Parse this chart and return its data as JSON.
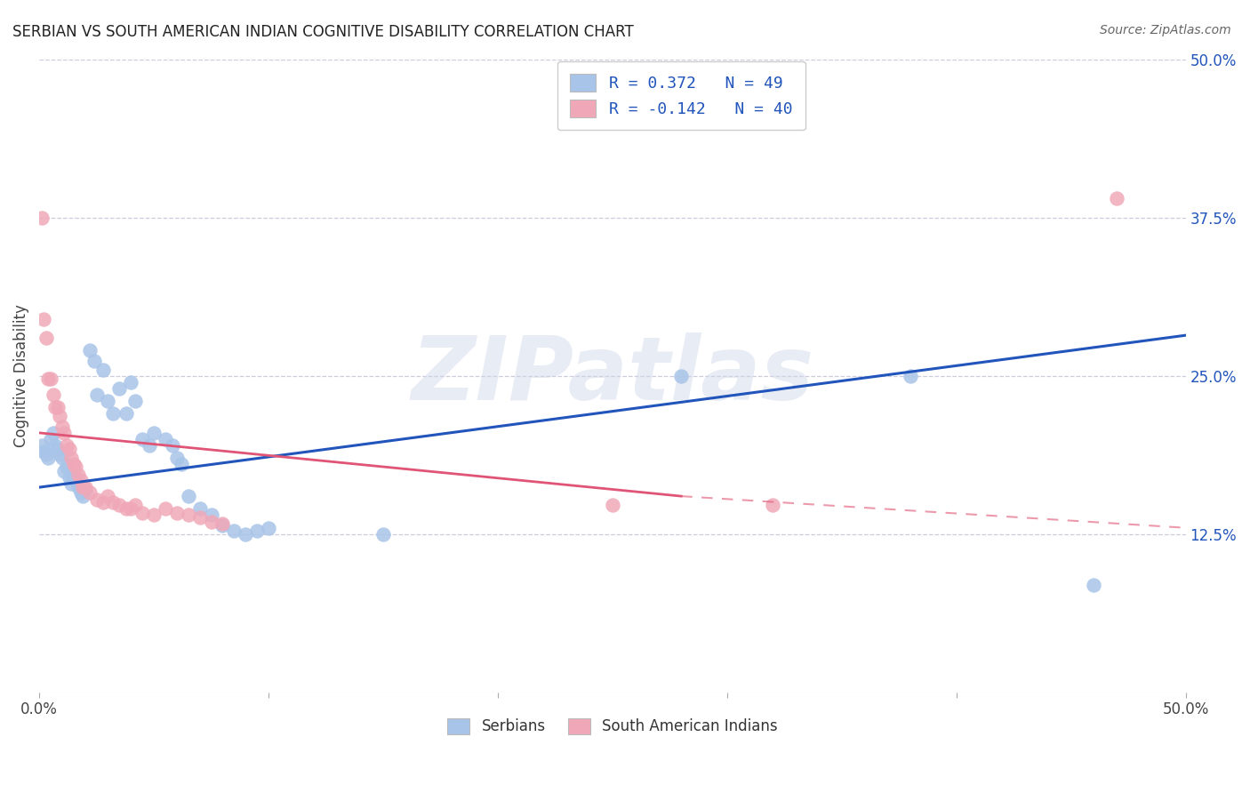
{
  "title": "SERBIAN VS SOUTH AMERICAN INDIAN COGNITIVE DISABILITY CORRELATION CHART",
  "source": "Source: ZipAtlas.com",
  "ylabel": "Cognitive Disability",
  "watermark": "ZIPatlas",
  "serbian_R": 0.372,
  "serbian_N": 49,
  "sai_R": -0.142,
  "sai_N": 40,
  "serbian_color": "#a8c4e8",
  "sai_color": "#f0a8b8",
  "serbian_line_color": "#2255bb",
  "sai_line_color": "#e05575",
  "xlim": [
    0.0,
    0.5
  ],
  "ylim": [
    0.0,
    0.5
  ],
  "serbian_points": [
    [
      0.001,
      0.195
    ],
    [
      0.002,
      0.19
    ],
    [
      0.003,
      0.188
    ],
    [
      0.004,
      0.185
    ],
    [
      0.005,
      0.2
    ],
    [
      0.006,
      0.205
    ],
    [
      0.007,
      0.195
    ],
    [
      0.008,
      0.192
    ],
    [
      0.009,
      0.188
    ],
    [
      0.01,
      0.185
    ],
    [
      0.011,
      0.175
    ],
    [
      0.012,
      0.178
    ],
    [
      0.013,
      0.17
    ],
    [
      0.014,
      0.165
    ],
    [
      0.015,
      0.17
    ],
    [
      0.016,
      0.168
    ],
    [
      0.017,
      0.162
    ],
    [
      0.018,
      0.158
    ],
    [
      0.019,
      0.155
    ],
    [
      0.02,
      0.16
    ],
    [
      0.022,
      0.27
    ],
    [
      0.024,
      0.262
    ],
    [
      0.025,
      0.235
    ],
    [
      0.028,
      0.255
    ],
    [
      0.03,
      0.23
    ],
    [
      0.032,
      0.22
    ],
    [
      0.035,
      0.24
    ],
    [
      0.038,
      0.22
    ],
    [
      0.04,
      0.245
    ],
    [
      0.042,
      0.23
    ],
    [
      0.045,
      0.2
    ],
    [
      0.048,
      0.195
    ],
    [
      0.05,
      0.205
    ],
    [
      0.055,
      0.2
    ],
    [
      0.058,
      0.195
    ],
    [
      0.06,
      0.185
    ],
    [
      0.062,
      0.18
    ],
    [
      0.065,
      0.155
    ],
    [
      0.07,
      0.145
    ],
    [
      0.075,
      0.14
    ],
    [
      0.08,
      0.132
    ],
    [
      0.085,
      0.128
    ],
    [
      0.09,
      0.125
    ],
    [
      0.095,
      0.128
    ],
    [
      0.1,
      0.13
    ],
    [
      0.15,
      0.125
    ],
    [
      0.28,
      0.25
    ],
    [
      0.38,
      0.25
    ],
    [
      0.46,
      0.085
    ]
  ],
  "sai_points": [
    [
      0.001,
      0.375
    ],
    [
      0.002,
      0.295
    ],
    [
      0.003,
      0.28
    ],
    [
      0.004,
      0.248
    ],
    [
      0.005,
      0.248
    ],
    [
      0.006,
      0.235
    ],
    [
      0.007,
      0.225
    ],
    [
      0.008,
      0.225
    ],
    [
      0.009,
      0.218
    ],
    [
      0.01,
      0.21
    ],
    [
      0.011,
      0.205
    ],
    [
      0.012,
      0.195
    ],
    [
      0.013,
      0.192
    ],
    [
      0.014,
      0.185
    ],
    [
      0.015,
      0.18
    ],
    [
      0.016,
      0.178
    ],
    [
      0.017,
      0.172
    ],
    [
      0.018,
      0.168
    ],
    [
      0.019,
      0.162
    ],
    [
      0.02,
      0.162
    ],
    [
      0.022,
      0.158
    ],
    [
      0.025,
      0.152
    ],
    [
      0.028,
      0.15
    ],
    [
      0.03,
      0.155
    ],
    [
      0.032,
      0.15
    ],
    [
      0.035,
      0.148
    ],
    [
      0.038,
      0.145
    ],
    [
      0.04,
      0.145
    ],
    [
      0.042,
      0.148
    ],
    [
      0.045,
      0.142
    ],
    [
      0.05,
      0.14
    ],
    [
      0.055,
      0.145
    ],
    [
      0.06,
      0.142
    ],
    [
      0.065,
      0.14
    ],
    [
      0.07,
      0.138
    ],
    [
      0.075,
      0.135
    ],
    [
      0.08,
      0.133
    ],
    [
      0.25,
      0.148
    ],
    [
      0.32,
      0.148
    ],
    [
      0.47,
      0.39
    ]
  ],
  "right_yticks": [
    0.125,
    0.25,
    0.375,
    0.5
  ],
  "right_ytick_labels": [
    "12.5%",
    "25.0%",
    "37.5%",
    "50.0%"
  ],
  "xtick_positions": [
    0.0,
    0.1,
    0.2,
    0.3,
    0.4,
    0.5
  ],
  "background_color": "#ffffff",
  "grid_color": "#ccccdd",
  "legend_serbian_label": "Serbians",
  "legend_sai_label": "South American Indians",
  "serbian_line_y0": 0.162,
  "serbian_line_y1": 0.282,
  "sai_line_x0": 0.0,
  "sai_line_y0": 0.205,
  "sai_line_xbreak": 0.28,
  "sai_line_ybreak": 0.155,
  "sai_line_x1": 0.5,
  "sai_line_y1": 0.13
}
